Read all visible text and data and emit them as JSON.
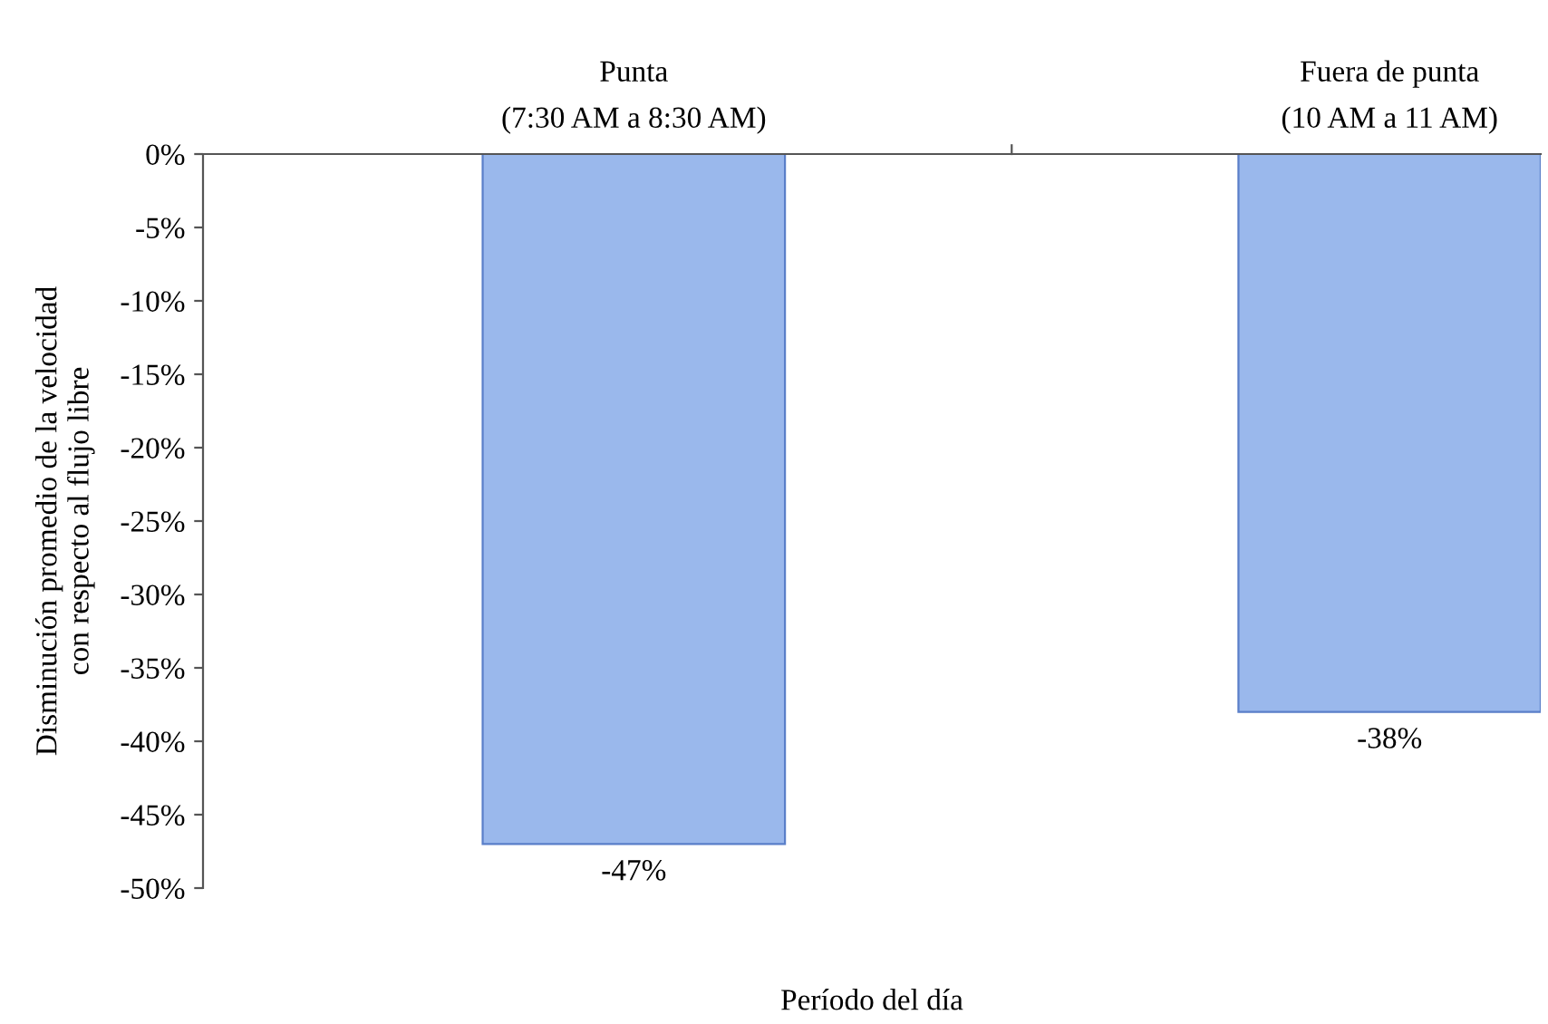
{
  "chart_data": {
    "type": "bar",
    "categories": [
      "Punta\n(7:30 AM a 8:30 AM)",
      "Fuera de punta\n(10 AM a 11 AM)"
    ],
    "values": [
      -47,
      -38
    ],
    "value_labels": [
      "-47%",
      "-38%"
    ],
    "color": "#9ab8ec",
    "xlabel": "Período del día",
    "ylabel": "Disminución promedio de la velocidad\ncon respecto al flujo libre",
    "ylim": [
      -50,
      0
    ],
    "yticks": [
      {
        "value": 0,
        "label": "0%"
      },
      {
        "value": -5,
        "label": "-5%"
      },
      {
        "value": -10,
        "label": "-10%"
      },
      {
        "value": -15,
        "label": "-15%"
      },
      {
        "value": -20,
        "label": "-20%"
      },
      {
        "value": -25,
        "label": "-25%"
      },
      {
        "value": -30,
        "label": "-30%"
      },
      {
        "value": -35,
        "label": "-35%"
      },
      {
        "value": -40,
        "label": "-40%"
      },
      {
        "value": -45,
        "label": "-45%"
      },
      {
        "value": -50,
        "label": "-50%"
      }
    ],
    "grid": false,
    "legend": false
  }
}
